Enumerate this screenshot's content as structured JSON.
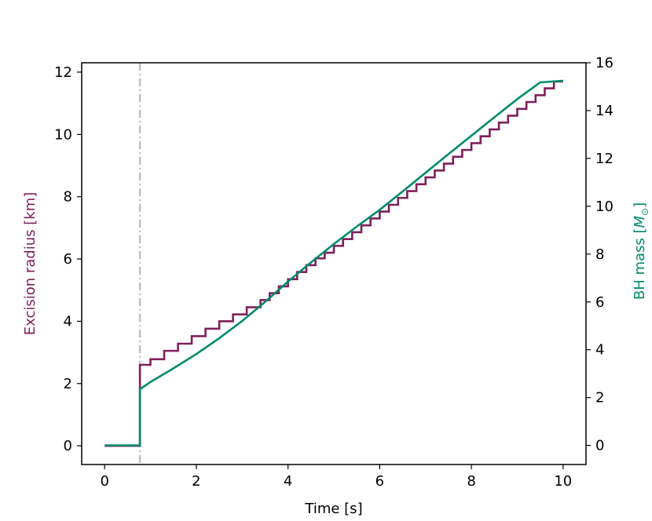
{
  "chart_data": {
    "type": "line",
    "xlabel": "Time [s]",
    "ylabel_left": "Excision radius [km]",
    "ylabel_right_prefix": "BH mass [",
    "ylabel_right_symbol": "M",
    "ylabel_right_sub": "⊙",
    "ylabel_right_suffix": "]",
    "xlim": [
      -0.5,
      10.5
    ],
    "ylim_left": [
      -0.6,
      12.3
    ],
    "ylim_right": [
      -0.8,
      16.0
    ],
    "xticks": [
      0,
      2,
      4,
      6,
      8,
      10
    ],
    "yticks_left": [
      0,
      2,
      4,
      6,
      8,
      10,
      12
    ],
    "yticks_right": [
      0,
      2,
      4,
      6,
      8,
      10,
      12,
      14,
      16
    ],
    "grid": false,
    "legend": "none",
    "vline": {
      "x": 0.77,
      "style": "dash-dot",
      "color": "#bfbfbf"
    },
    "series": [
      {
        "axis": "left",
        "step": true,
        "color": "#7f1f5a",
        "x": [
          0.0,
          0.77,
          0.77,
          1.0,
          1.3,
          1.6,
          1.9,
          2.2,
          2.5,
          2.8,
          3.1,
          3.4,
          3.6,
          3.8,
          4.0,
          4.2,
          4.4,
          4.6,
          4.8,
          5.0,
          5.2,
          5.4,
          5.6,
          5.8,
          6.0,
          6.2,
          6.4,
          6.6,
          6.8,
          7.0,
          7.2,
          7.4,
          7.6,
          7.8,
          8.0,
          8.2,
          8.4,
          8.6,
          8.8,
          9.0,
          9.2,
          9.4,
          9.6,
          9.8,
          10.0
        ],
        "y": [
          0.0,
          0.0,
          2.6,
          2.78,
          3.05,
          3.28,
          3.52,
          3.76,
          4.0,
          4.22,
          4.45,
          4.68,
          4.9,
          5.12,
          5.35,
          5.58,
          5.8,
          6.02,
          6.2,
          6.42,
          6.64,
          6.86,
          7.08,
          7.3,
          7.52,
          7.74,
          7.96,
          8.18,
          8.4,
          8.62,
          8.84,
          9.06,
          9.28,
          9.5,
          9.72,
          9.94,
          10.16,
          10.38,
          10.6,
          10.82,
          11.04,
          11.26,
          11.48,
          11.7,
          11.7
        ]
      },
      {
        "axis": "right",
        "step": false,
        "color": "#008b6b",
        "x": [
          0.0,
          0.77,
          0.77,
          1.0,
          1.5,
          2.0,
          2.5,
          3.0,
          3.5,
          4.0,
          4.5,
          5.0,
          5.5,
          6.0,
          6.5,
          7.0,
          7.5,
          8.0,
          8.5,
          9.0,
          9.5,
          10.0
        ],
        "y": [
          0.0,
          0.0,
          2.35,
          2.65,
          3.22,
          3.82,
          4.48,
          5.2,
          6.0,
          6.85,
          7.65,
          8.42,
          9.15,
          9.85,
          10.62,
          11.4,
          12.18,
          12.95,
          13.72,
          14.48,
          15.18,
          15.25
        ]
      }
    ]
  }
}
